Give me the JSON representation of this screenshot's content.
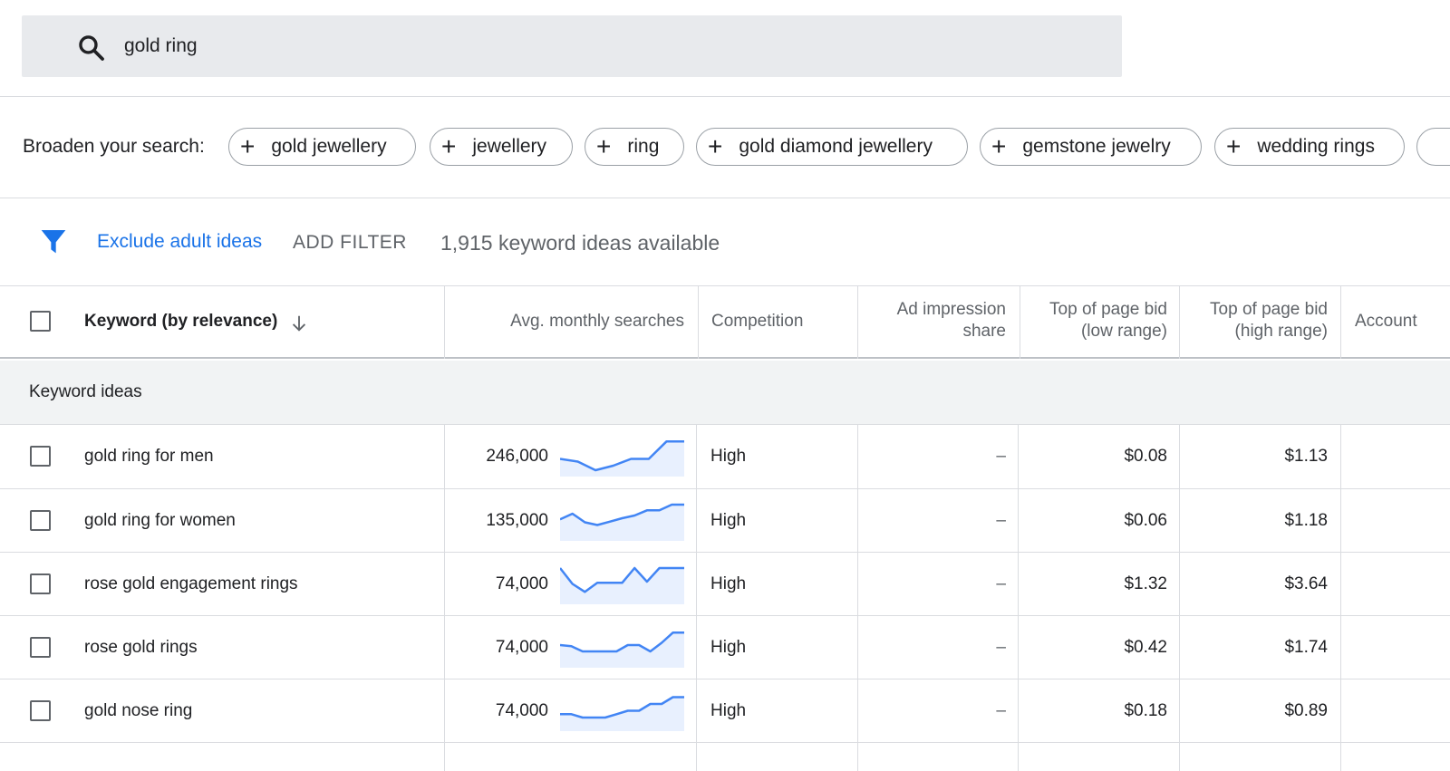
{
  "search": {
    "query": "gold ring"
  },
  "broaden": {
    "label": "Broaden your search:",
    "chips": [
      "gold jewellery",
      "jewellery",
      "ring",
      "gold diamond jewellery",
      "gemstone jewelry",
      "wedding rings"
    ]
  },
  "filters": {
    "exclude_label": "Exclude adult ideas",
    "add_filter_label": "ADD FILTER",
    "ideas_count": "1,915 keyword ideas available"
  },
  "table": {
    "headers": {
      "keyword": "Keyword (by relevance)",
      "searches": "Avg. monthly searches",
      "competition": "Competition",
      "impression_1": "Ad impression",
      "impression_2": "share",
      "low_1": "Top of page bid",
      "low_2": "(low range)",
      "high_1": "Top of page bid",
      "high_2": "(high range)",
      "account": "Account"
    },
    "group_label": "Keyword ideas",
    "rows": [
      {
        "keyword": "gold ring for men",
        "searches": "246,000",
        "competition": "High",
        "impression": "–",
        "low": "$0.08",
        "high": "$1.13",
        "trend": [
          0.78,
          0.66,
          0.28,
          0.48,
          0.78,
          0.78,
          1.55,
          1.55
        ]
      },
      {
        "keyword": "gold ring for women",
        "searches": "135,000",
        "competition": "High",
        "impression": "–",
        "low": "$0.06",
        "high": "$1.18",
        "trend": [
          0.95,
          1.2,
          0.82,
          0.7,
          0.85,
          1.0,
          1.12,
          1.35,
          1.35,
          1.6,
          1.6
        ]
      },
      {
        "keyword": "rose gold engagement rings",
        "searches": "74,000",
        "competition": "High",
        "impression": "–",
        "low": "$1.32",
        "high": "$3.64",
        "trend": [
          1.6,
          0.9,
          0.55,
          0.95,
          0.95,
          0.95,
          1.6,
          1.0,
          1.6,
          1.6,
          1.6
        ]
      },
      {
        "keyword": "rose gold rings",
        "searches": "74,000",
        "competition": "High",
        "impression": "–",
        "low": "$0.42",
        "high": "$1.74",
        "trend": [
          1.0,
          0.95,
          0.72,
          0.72,
          0.72,
          0.72,
          1.0,
          1.0,
          0.72,
          1.1,
          1.55,
          1.55
        ]
      },
      {
        "keyword": "gold nose ring",
        "searches": "74,000",
        "competition": "High",
        "impression": "–",
        "low": "$0.18",
        "high": "$0.89",
        "trend": [
          0.75,
          0.75,
          0.6,
          0.6,
          0.6,
          0.75,
          0.9,
          0.9,
          1.2,
          1.2,
          1.5,
          1.5
        ]
      }
    ]
  },
  "colors": {
    "accent": "#1a73e8",
    "spark_line": "#4285f4",
    "spark_fill": "#e8f0fe"
  }
}
